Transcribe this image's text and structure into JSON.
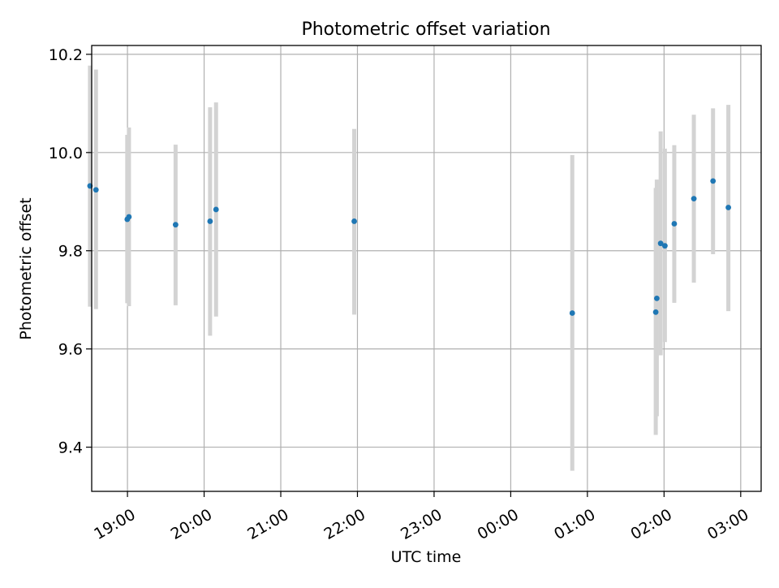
{
  "chart_data": {
    "type": "scatter",
    "title": "Photometric offset variation",
    "xlabel": "UTC time",
    "ylabel": "Photometric offset",
    "grid": true,
    "x_axis_kind": "time (HH:MM, UTC)",
    "xlim": [
      "18:32",
      "03:16"
    ],
    "ylim": [
      9.31,
      10.218
    ],
    "x_ticks": [
      "19:00",
      "20:00",
      "21:00",
      "22:00",
      "23:00",
      "00:00",
      "01:00",
      "02:00",
      "03:00"
    ],
    "y_ticks": [
      9.4,
      9.6,
      9.8,
      10.0,
      10.2
    ],
    "y_tick_labels": [
      "9.4",
      "9.6",
      "9.8",
      "10.0",
      "10.2"
    ],
    "marker_color": "#1f77b4",
    "errorbar_color": "#d3d3d3",
    "points": [
      {
        "x": "18:30:40",
        "y": 9.932,
        "ylow": 9.686,
        "yhigh": 10.177
      },
      {
        "x": "18:35:20",
        "y": 9.924,
        "ylow": 9.681,
        "yhigh": 10.169
      },
      {
        "x": "18:59:50",
        "y": 9.864,
        "ylow": 9.693,
        "yhigh": 10.036
      },
      {
        "x": "19:01:10",
        "y": 9.869,
        "ylow": 9.687,
        "yhigh": 10.051
      },
      {
        "x": "19:37:40",
        "y": 9.853,
        "ylow": 9.689,
        "yhigh": 10.016
      },
      {
        "x": "20:04:40",
        "y": 9.86,
        "ylow": 9.627,
        "yhigh": 10.092
      },
      {
        "x": "20:09:20",
        "y": 9.884,
        "ylow": 9.666,
        "yhigh": 10.102
      },
      {
        "x": "21:57:30",
        "y": 9.86,
        "ylow": 9.67,
        "yhigh": 10.048
      },
      {
        "x": "00:48:10",
        "y": 9.673,
        "ylow": 9.352,
        "yhigh": 9.995
      },
      {
        "x": "01:53:30",
        "y": 9.675,
        "ylow": 9.425,
        "yhigh": 9.928
      },
      {
        "x": "01:54:20",
        "y": 9.703,
        "ylow": 9.463,
        "yhigh": 9.945
      },
      {
        "x": "01:57:20",
        "y": 9.815,
        "ylow": 9.587,
        "yhigh": 10.043
      },
      {
        "x": "02:00:40",
        "y": 9.81,
        "ylow": 9.614,
        "yhigh": 10.008
      },
      {
        "x": "02:08:00",
        "y": 9.855,
        "ylow": 9.694,
        "yhigh": 10.015
      },
      {
        "x": "02:23:20",
        "y": 9.906,
        "ylow": 9.735,
        "yhigh": 10.077
      },
      {
        "x": "02:38:20",
        "y": 9.942,
        "ylow": 9.793,
        "yhigh": 10.09
      },
      {
        "x": "02:50:20",
        "y": 9.888,
        "ylow": 9.677,
        "yhigh": 10.097
      }
    ]
  }
}
